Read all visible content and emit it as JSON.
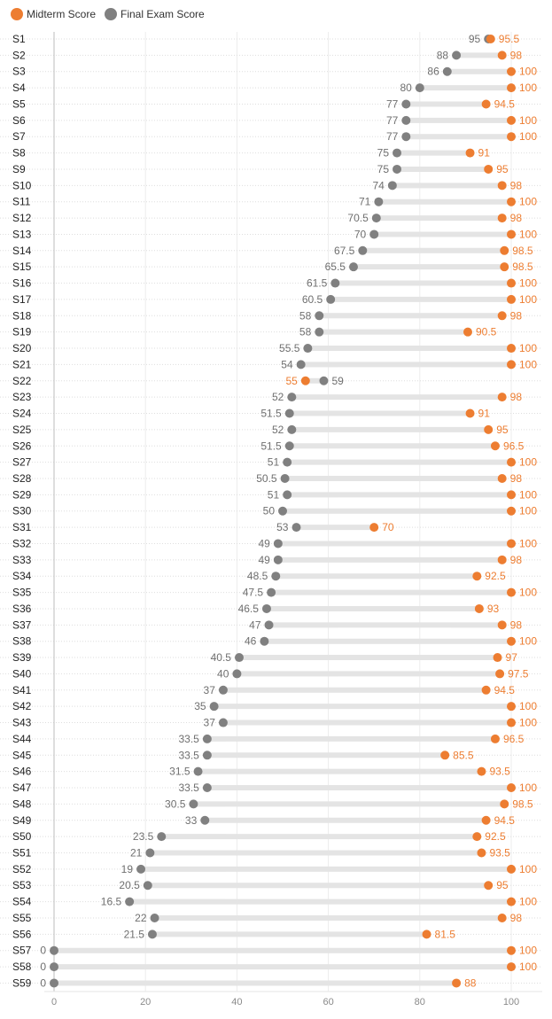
{
  "chart_data": {
    "type": "dumbbell",
    "title": "",
    "xlabel": "",
    "ylabel": "",
    "xlim": [
      0,
      100
    ],
    "xticks": [
      0,
      20,
      40,
      60,
      80,
      100
    ],
    "grid": true,
    "legend": "top-left",
    "series": [
      {
        "name": "Midterm Score",
        "color": "#ED7D31",
        "key": "midterm"
      },
      {
        "name": "Final Exam Score",
        "color": "#808080",
        "key": "final"
      }
    ],
    "categories": [
      "S1",
      "S2",
      "S3",
      "S4",
      "S5",
      "S6",
      "S7",
      "S8",
      "S9",
      "S10",
      "S11",
      "S12",
      "S13",
      "S14",
      "S15",
      "S16",
      "S17",
      "S18",
      "S19",
      "S20",
      "S21",
      "S22",
      "S23",
      "S24",
      "S25",
      "S26",
      "S27",
      "S28",
      "S29",
      "S30",
      "S31",
      "S32",
      "S33",
      "S34",
      "S35",
      "S36",
      "S37",
      "S38",
      "S39",
      "S40",
      "S41",
      "S42",
      "S43",
      "S44",
      "S45",
      "S46",
      "S47",
      "S48",
      "S49",
      "S50",
      "S51",
      "S52",
      "S53",
      "S54",
      "S55",
      "S56",
      "S57",
      "S58",
      "S59"
    ],
    "midterm": [
      95.5,
      98,
      100,
      100,
      94.5,
      100,
      100,
      91,
      95,
      98,
      100,
      98,
      100,
      98.5,
      98.5,
      100,
      100,
      98,
      90.5,
      100,
      100,
      55,
      98,
      91,
      95,
      96.5,
      100,
      98,
      100,
      100,
      70,
      100,
      98,
      92.5,
      100,
      93,
      98,
      100,
      97,
      97.5,
      94.5,
      100,
      100,
      96.5,
      85.5,
      93.5,
      100,
      98.5,
      94.5,
      92.5,
      93.5,
      100,
      95,
      100,
      98,
      81.5,
      100,
      100,
      88
    ],
    "final": [
      95,
      88,
      86,
      80,
      77,
      77,
      77,
      75,
      75,
      74,
      71,
      70.5,
      70,
      67.5,
      65.5,
      61.5,
      60.5,
      58,
      58,
      55.5,
      54,
      59,
      52,
      51.5,
      52,
      51.5,
      51,
      50.5,
      51,
      50,
      53,
      49,
      49,
      48.5,
      47.5,
      46.5,
      47,
      46,
      40.5,
      40,
      37,
      35,
      37,
      33.5,
      33.5,
      31.5,
      33.5,
      30.5,
      33,
      23.5,
      21,
      19,
      20.5,
      16.5,
      22,
      21.5,
      0,
      0,
      0
    ]
  }
}
